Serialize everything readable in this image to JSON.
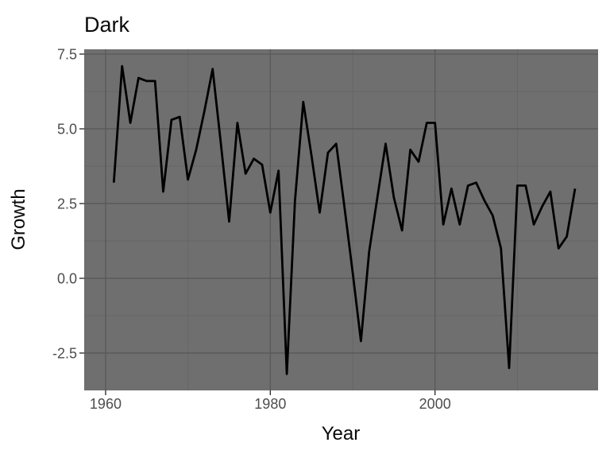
{
  "chart_data": {
    "type": "line",
    "title": "Dark",
    "xlabel": "Year",
    "ylabel": "Growth",
    "x": [
      1961,
      1962,
      1963,
      1964,
      1965,
      1966,
      1967,
      1968,
      1969,
      1970,
      1971,
      1972,
      1973,
      1974,
      1975,
      1976,
      1977,
      1978,
      1979,
      1980,
      1981,
      1982,
      1983,
      1984,
      1985,
      1986,
      1987,
      1988,
      1989,
      1990,
      1991,
      1992,
      1993,
      1994,
      1995,
      1996,
      1997,
      1998,
      1999,
      2000,
      2001,
      2002,
      2003,
      2004,
      2005,
      2006,
      2007,
      2008,
      2009,
      2010,
      2011,
      2012,
      2013,
      2014,
      2015,
      2016,
      2017
    ],
    "values": [
      3.2,
      7.1,
      5.2,
      6.7,
      6.6,
      6.6,
      2.9,
      5.3,
      5.4,
      3.3,
      4.3,
      5.6,
      7.0,
      4.5,
      1.9,
      5.2,
      3.5,
      4.0,
      3.8,
      2.2,
      3.6,
      -3.2,
      2.6,
      5.9,
      4.1,
      2.2,
      4.2,
      4.5,
      2.4,
      0.2,
      -2.1,
      0.9,
      2.7,
      4.5,
      2.7,
      1.6,
      4.3,
      3.9,
      5.2,
      5.2,
      1.8,
      3.0,
      1.8,
      3.1,
      3.2,
      2.6,
      2.1,
      1.0,
      -3.0,
      3.1,
      3.1,
      1.8,
      2.4,
      2.9,
      1.0,
      1.4,
      3.0
    ],
    "xlim": [
      1957.4,
      2019.8
    ],
    "ylim": [
      -3.75,
      7.66
    ],
    "x_major_ticks": [
      1960,
      1980,
      2000
    ],
    "x_major_labels": [
      "1960",
      "1980",
      "2000"
    ],
    "x_minor_ticks": [
      1970,
      1990,
      2010
    ],
    "y_major_ticks": [
      7.5,
      5.0,
      2.5,
      0.0,
      -2.5
    ],
    "y_major_labels": [
      "7.5",
      "5.0",
      "2.5",
      "0.0",
      "-2.5"
    ],
    "y_minor_ticks": [
      6.25,
      3.75,
      1.25,
      -1.25
    ],
    "grid": "major+minor",
    "legend": "none",
    "colors": {
      "background": "#FFFFFF",
      "panel_background": "#6F6F6F",
      "grid_major": "#5A5A5A",
      "grid_minor": "#646464",
      "line": "#000000",
      "tick_mark": "#333333",
      "tick_label": "#4D4D4D",
      "axis_title": "#0A0A0A",
      "title": "#0A0A0A"
    }
  }
}
